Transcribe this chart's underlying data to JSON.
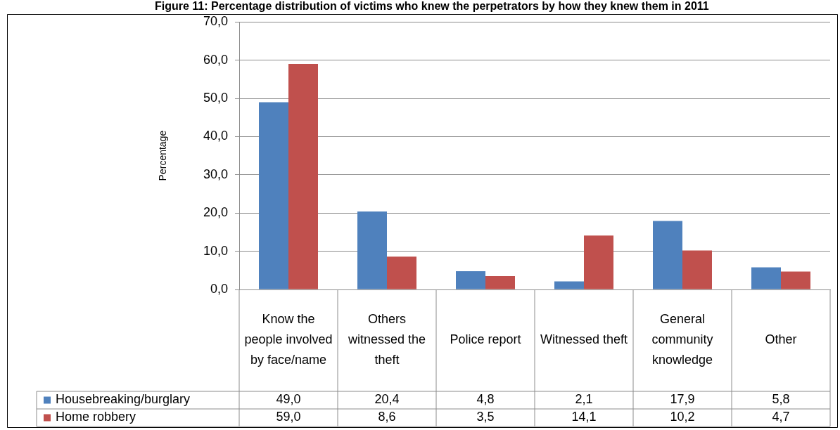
{
  "chart_data": {
    "type": "bar",
    "title": "Figure 11: Percentage distribution of victims who knew the perpetrators by how they knew them in 2011",
    "ylabel": "Percentage",
    "categories": [
      "Know the people involved by face/name",
      "Others witnessed the theft",
      "Police report",
      "Witnessed theft",
      "General community knowledge",
      "Other"
    ],
    "series": [
      {
        "name": "Housebreaking/burglary",
        "color": "#4f81bd",
        "values": [
          49.0,
          20.4,
          4.8,
          2.1,
          17.9,
          5.8
        ],
        "value_labels": [
          "49,0",
          "20,4",
          "4,8",
          "2,1",
          "17,9",
          "5,8"
        ]
      },
      {
        "name": "Home robbery",
        "color": "#c0504d",
        "values": [
          59.0,
          8.6,
          3.5,
          14.1,
          10.2,
          4.7
        ],
        "value_labels": [
          "59,0",
          "8,6",
          "3,5",
          "14,1",
          "10,2",
          "4,7"
        ]
      }
    ],
    "ylim": [
      0,
      70
    ],
    "yticks": [
      {
        "value": 0,
        "label": "0,0"
      },
      {
        "value": 10,
        "label": "10,0"
      },
      {
        "value": 20,
        "label": "20,0"
      },
      {
        "value": 30,
        "label": "30,0"
      },
      {
        "value": 40,
        "label": "40,0"
      },
      {
        "value": 50,
        "label": "50,0"
      },
      {
        "value": 60,
        "label": "60,0"
      },
      {
        "value": 70,
        "label": "70,0"
      }
    ],
    "grid": "y",
    "legend": "bottom"
  }
}
